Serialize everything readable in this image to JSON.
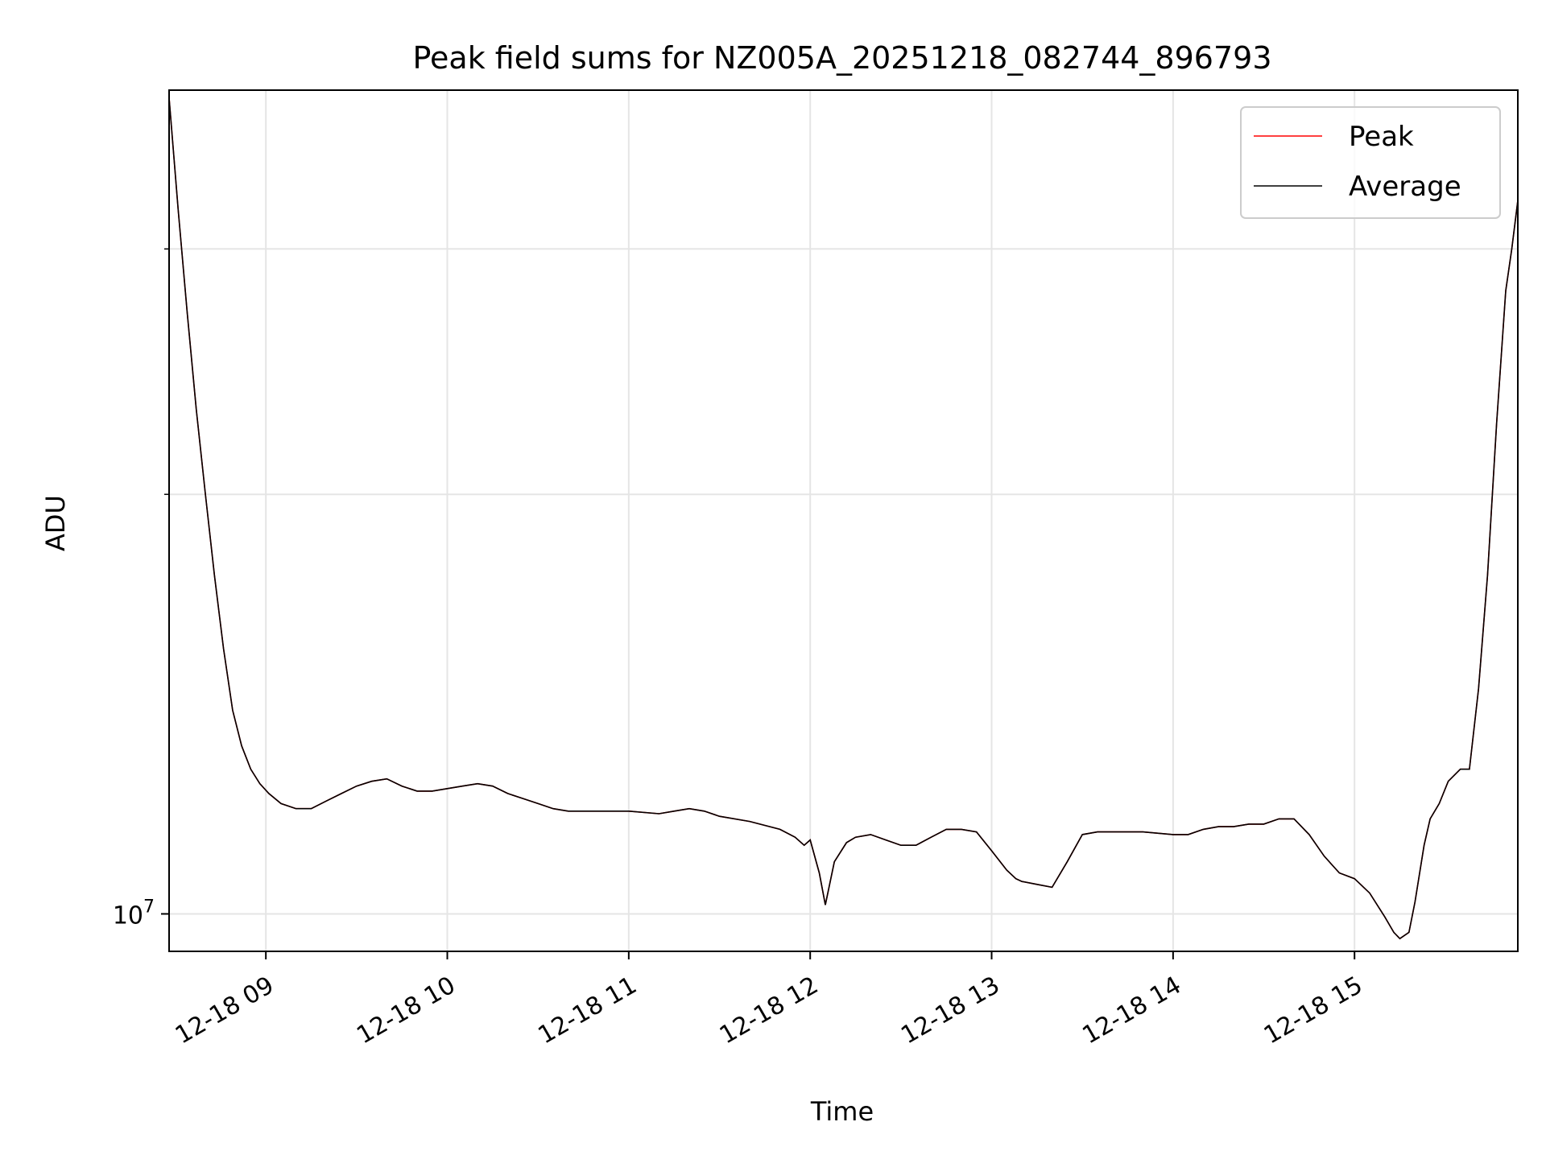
{
  "chart_data": {
    "type": "line",
    "title": "Peak field sums for NZ005A_20251218_082744_896793",
    "xlabel": "Time",
    "ylabel": "ADU",
    "x_ticks": [
      "12-18 09",
      "12-18 10",
      "12-18 11",
      "12-18 12",
      "12-18 13",
      "12-18 14",
      "12-18 15"
    ],
    "y_ticks": [
      {
        "base": "10",
        "exp": "7"
      }
    ],
    "y_scale": "log",
    "ylim": [
      9400000,
      39000000
    ],
    "xlim": [
      "2025-12-18 08:28",
      "2025-12-18 15:54"
    ],
    "grid": true,
    "legend_position": "top-right",
    "colors": {
      "peak": "#ff0000",
      "average": "#000000",
      "grid": "#e5e5e5"
    },
    "series": [
      {
        "name": "Peak",
        "x": [
          "08:28",
          "08:31",
          "08:34",
          "08:37",
          "08:40",
          "08:43",
          "08:46",
          "08:49",
          "08:52",
          "08:55",
          "08:58",
          "09:01",
          "09:05",
          "09:10",
          "09:15",
          "09:20",
          "09:25",
          "09:30",
          "09:35",
          "09:40",
          "09:45",
          "09:50",
          "09:55",
          "10:00",
          "10:05",
          "10:10",
          "10:15",
          "10:20",
          "10:25",
          "10:30",
          "10:35",
          "10:40",
          "10:45",
          "10:50",
          "11:00",
          "11:10",
          "11:15",
          "11:20",
          "11:25",
          "11:30",
          "11:40",
          "11:50",
          "11:55",
          "11:58",
          "12:00",
          "12:03",
          "12:05",
          "12:08",
          "12:12",
          "12:15",
          "12:20",
          "12:25",
          "12:30",
          "12:35",
          "12:40",
          "12:45",
          "12:50",
          "12:55",
          "13:00",
          "13:05",
          "13:08",
          "13:10",
          "13:15",
          "13:20",
          "13:25",
          "13:30",
          "13:35",
          "13:40",
          "13:45",
          "13:50",
          "14:00",
          "14:05",
          "14:10",
          "14:15",
          "14:20",
          "14:25",
          "14:30",
          "14:35",
          "14:40",
          "14:45",
          "14:50",
          "14:55",
          "15:00",
          "15:05",
          "15:10",
          "15:13",
          "15:15",
          "15:18",
          "15:20",
          "15:23",
          "15:25",
          "15:28",
          "15:31",
          "15:35",
          "15:38",
          "15:41",
          "15:44",
          "15:47",
          "15:50",
          "15:52",
          "15:54"
        ],
        "values": [
          38500000,
          32000000,
          27000000,
          23000000,
          20000000,
          17500000,
          15500000,
          14000000,
          13200000,
          12700000,
          12400000,
          12200000,
          12000000,
          11900000,
          11900000,
          12050000,
          12200000,
          12350000,
          12450000,
          12500000,
          12350000,
          12250000,
          12250000,
          12300000,
          12350000,
          12400000,
          12350000,
          12200000,
          12100000,
          12000000,
          11900000,
          11850000,
          11850000,
          11850000,
          11850000,
          11800000,
          11850000,
          11900000,
          11850000,
          11750000,
          11650000,
          11500000,
          11350000,
          11200000,
          11300000,
          10700000,
          10150000,
          10900000,
          11250000,
          11350000,
          11400000,
          11300000,
          11200000,
          11200000,
          11350000,
          11500000,
          11500000,
          11450000,
          11100000,
          10750000,
          10600000,
          10550000,
          10500000,
          10450000,
          10900000,
          11400000,
          11450000,
          11450000,
          11450000,
          11450000,
          11400000,
          11400000,
          11500000,
          11550000,
          11550000,
          11600000,
          11600000,
          11700000,
          11700000,
          11400000,
          11000000,
          10700000,
          10600000,
          10350000,
          9950000,
          9700000,
          9600000,
          9700000,
          10200000,
          11200000,
          11700000,
          12000000,
          12450000,
          12700000,
          12700000,
          14500000,
          17500000,
          22500000,
          28000000,
          30000000,
          32500000
        ]
      },
      {
        "name": "Average",
        "x": [
          "08:28",
          "08:31",
          "08:34",
          "08:37",
          "08:40",
          "08:43",
          "08:46",
          "08:49",
          "08:52",
          "08:55",
          "08:58",
          "09:01",
          "09:05",
          "09:10",
          "09:15",
          "09:20",
          "09:25",
          "09:30",
          "09:35",
          "09:40",
          "09:45",
          "09:50",
          "09:55",
          "10:00",
          "10:05",
          "10:10",
          "10:15",
          "10:20",
          "10:25",
          "10:30",
          "10:35",
          "10:40",
          "10:45",
          "10:50",
          "11:00",
          "11:10",
          "11:15",
          "11:20",
          "11:25",
          "11:30",
          "11:40",
          "11:50",
          "11:55",
          "11:58",
          "12:00",
          "12:03",
          "12:05",
          "12:08",
          "12:12",
          "12:15",
          "12:20",
          "12:25",
          "12:30",
          "12:35",
          "12:40",
          "12:45",
          "12:50",
          "12:55",
          "13:00",
          "13:05",
          "13:08",
          "13:10",
          "13:15",
          "13:20",
          "13:25",
          "13:30",
          "13:35",
          "13:40",
          "13:45",
          "13:50",
          "14:00",
          "14:05",
          "14:10",
          "14:15",
          "14:20",
          "14:25",
          "14:30",
          "14:35",
          "14:40",
          "14:45",
          "14:50",
          "14:55",
          "15:00",
          "15:05",
          "15:10",
          "15:13",
          "15:15",
          "15:18",
          "15:20",
          "15:23",
          "15:25",
          "15:28",
          "15:31",
          "15:35",
          "15:38",
          "15:41",
          "15:44",
          "15:47",
          "15:50",
          "15:52",
          "15:54"
        ],
        "values": [
          38500000,
          32000000,
          27000000,
          23000000,
          20000000,
          17500000,
          15500000,
          14000000,
          13200000,
          12700000,
          12400000,
          12200000,
          12000000,
          11900000,
          11900000,
          12050000,
          12200000,
          12350000,
          12450000,
          12500000,
          12350000,
          12250000,
          12250000,
          12300000,
          12350000,
          12400000,
          12350000,
          12200000,
          12100000,
          12000000,
          11900000,
          11850000,
          11850000,
          11850000,
          11850000,
          11800000,
          11850000,
          11900000,
          11850000,
          11750000,
          11650000,
          11500000,
          11350000,
          11200000,
          11300000,
          10700000,
          10150000,
          10900000,
          11250000,
          11350000,
          11400000,
          11300000,
          11200000,
          11200000,
          11350000,
          11500000,
          11500000,
          11450000,
          11100000,
          10750000,
          10600000,
          10550000,
          10500000,
          10450000,
          10900000,
          11400000,
          11450000,
          11450000,
          11450000,
          11450000,
          11400000,
          11400000,
          11500000,
          11550000,
          11550000,
          11600000,
          11600000,
          11700000,
          11700000,
          11400000,
          11000000,
          10700000,
          10600000,
          10350000,
          9950000,
          9700000,
          9600000,
          9700000,
          10200000,
          11200000,
          11700000,
          12000000,
          12450000,
          12700000,
          12700000,
          14500000,
          17500000,
          22500000,
          28000000,
          30000000,
          32500000
        ]
      }
    ],
    "legend": [
      {
        "key": "peak",
        "label": "Peak"
      },
      {
        "key": "average",
        "label": "Average"
      }
    ]
  }
}
